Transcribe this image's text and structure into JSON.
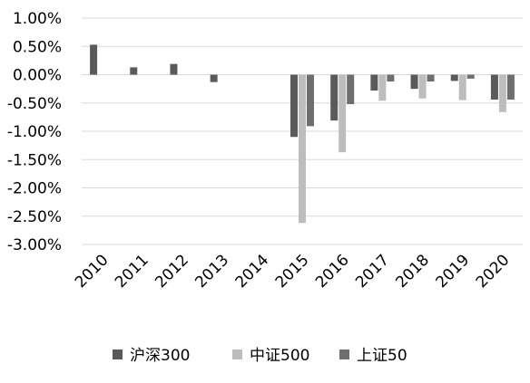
{
  "chart_data": {
    "type": "bar",
    "title": "",
    "xlabel": "",
    "ylabel": "",
    "categories": [
      "2010",
      "2011",
      "2012",
      "2013",
      "2014",
      "2015",
      "2016",
      "2017",
      "2018",
      "2019",
      "2020"
    ],
    "series": [
      {
        "name": "沪深300",
        "color": "#5a5a5a",
        "values": [
          0.53,
          0.13,
          0.19,
          -0.13,
          0,
          -1.1,
          -0.81,
          -0.28,
          -0.25,
          -0.11,
          -0.44
        ]
      },
      {
        "name": "中证500",
        "color": "#bdbdbd",
        "values": [
          0,
          0,
          0,
          0,
          0,
          -2.62,
          -1.37,
          -0.46,
          -0.42,
          -0.45,
          -0.66
        ]
      },
      {
        "name": "上证50",
        "color": "#6e6e6e",
        "values": [
          0,
          0,
          0,
          0,
          0,
          -0.91,
          -0.52,
          -0.12,
          -0.12,
          -0.07,
          -0.44
        ]
      }
    ],
    "yticks": [
      "1.00%",
      "0.50%",
      "0.00%",
      "-0.50%",
      "-1.00%",
      "-1.50%",
      "-2.00%",
      "-2.50%",
      "-3.00%"
    ],
    "ylim": [
      -3.0,
      1.0
    ],
    "ytick_step": 0.5,
    "grid": true,
    "legend": "bottom"
  }
}
